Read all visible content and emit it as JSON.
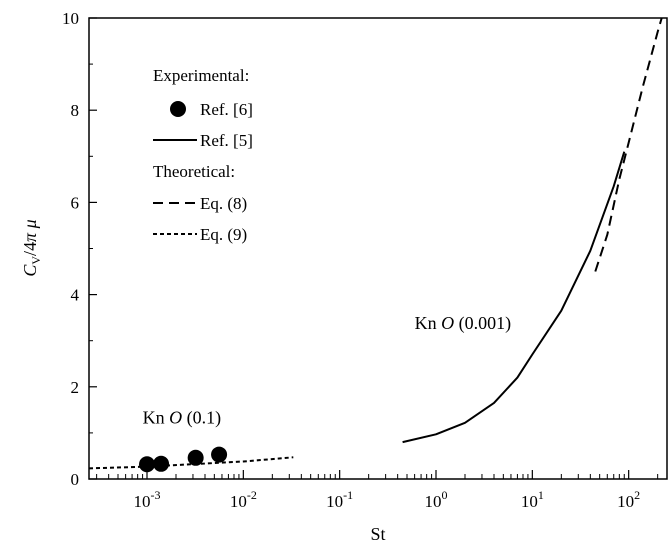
{
  "chart_data": {
    "type": "line",
    "xlabel": "St",
    "ylabel": "C_V/4πμ",
    "xscale": "log",
    "xlim": [
      0.00025,
      250
    ],
    "ylim": [
      0,
      10
    ],
    "grid": false,
    "legend_position": "top-left",
    "y_ticks": [
      {
        "value": 0,
        "label": "0"
      },
      {
        "value": 2,
        "label": "2"
      },
      {
        "value": 4,
        "label": "4"
      },
      {
        "value": 6,
        "label": "6"
      },
      {
        "value": 8,
        "label": "8"
      },
      {
        "value": 10,
        "label": "10"
      }
    ],
    "x_ticks": [
      {
        "value": 0.001,
        "base": "10",
        "exp": "-3"
      },
      {
        "value": 0.01,
        "base": "10",
        "exp": "-2"
      },
      {
        "value": 0.1,
        "base": "10",
        "exp": "-1"
      },
      {
        "value": 1,
        "base": "10",
        "exp": "0"
      },
      {
        "value": 10,
        "base": "10",
        "exp": "1"
      },
      {
        "value": 100,
        "base": "10",
        "exp": "2"
      }
    ],
    "legend": {
      "experimental_heading": "Experimental:",
      "theoretical_heading": "Theoretical:",
      "entries": [
        {
          "label": "Ref. [6]",
          "style": "marker"
        },
        {
          "label": "Ref. [5]",
          "style": "solid"
        },
        {
          "label": "Eq. (8)",
          "style": "dashed"
        },
        {
          "label": "Eq. (9)",
          "style": "dotted"
        }
      ]
    },
    "series": [
      {
        "name": "Ref. [6]",
        "style": "marker",
        "points": [
          [
            0.001,
            0.32
          ],
          [
            0.0014,
            0.33
          ],
          [
            0.0032,
            0.46
          ],
          [
            0.0056,
            0.53
          ]
        ]
      },
      {
        "name": "Ref. [5]",
        "style": "solid",
        "points": [
          [
            0.45,
            0.8
          ],
          [
            1,
            0.97
          ],
          [
            2,
            1.22
          ],
          [
            4,
            1.65
          ],
          [
            7,
            2.2
          ],
          [
            10,
            2.7
          ],
          [
            20,
            3.65
          ],
          [
            40,
            4.95
          ],
          [
            70,
            6.35
          ],
          [
            90,
            7.1
          ]
        ]
      },
      {
        "name": "Eq. (8)",
        "style": "dashed",
        "points": [
          [
            45,
            4.5
          ],
          [
            60,
            5.3
          ],
          [
            80,
            6.5
          ],
          [
            100,
            7.3
          ],
          [
            140,
            8.5
          ],
          [
            200,
            9.7
          ],
          [
            220,
            10.0
          ]
        ]
      },
      {
        "name": "Eq. (9)",
        "style": "dotted",
        "points": [
          [
            0.00025,
            0.23
          ],
          [
            0.001,
            0.27
          ],
          [
            0.003,
            0.32
          ],
          [
            0.01,
            0.38
          ],
          [
            0.033,
            0.47
          ]
        ]
      }
    ],
    "annotations": [
      {
        "prefix": "Kn ",
        "italic": "O",
        "suffix": " (0.001)",
        "at": [
          0.6,
          3.25
        ]
      },
      {
        "prefix": "Kn ",
        "italic": "O",
        "suffix": " (0.1)",
        "at": [
          0.0009,
          1.2
        ]
      }
    ]
  }
}
